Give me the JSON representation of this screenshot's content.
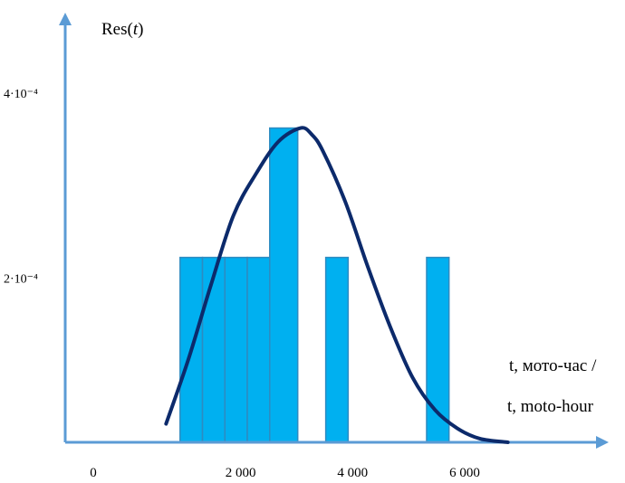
{
  "chart_data": {
    "type": "bar",
    "ylabel": "Res(t)",
    "xlabel_line1": "t, мото-час /",
    "xlabel_line2": "t, moto-hour",
    "x_ticks": [
      {
        "value": 0,
        "label": "0"
      },
      {
        "value": 2000,
        "label": "2 000"
      },
      {
        "value": 4000,
        "label": "4 000"
      },
      {
        "value": 6000,
        "label": "6 000"
      }
    ],
    "y_ticks": [
      {
        "value": 0.0002,
        "label": "2·10⁻⁴"
      },
      {
        "value": 0.0004,
        "label": "4·10⁻⁴"
      }
    ],
    "bars": [
      {
        "x0": 1050,
        "x1": 1450,
        "value": 0.0002
      },
      {
        "x0": 1450,
        "x1": 1850,
        "value": 0.0002
      },
      {
        "x0": 1850,
        "x1": 2250,
        "value": 0.0002
      },
      {
        "x0": 2250,
        "x1": 2650,
        "value": 0.0002
      },
      {
        "x0": 2650,
        "x1": 3150,
        "value": 0.00034
      },
      {
        "x0": 3650,
        "x1": 4050,
        "value": 0.0002
      },
      {
        "x0": 5450,
        "x1": 5850,
        "value": 0.0002
      }
    ],
    "curve": {
      "x": [
        800,
        1200,
        1600,
        2000,
        2400,
        2800,
        3200,
        3400,
        3600,
        4000,
        4400,
        4800,
        5200,
        5600,
        6000,
        6400,
        6900
      ],
      "y": [
        2e-05,
        9e-05,
        0.00017,
        0.000245,
        0.00029,
        0.000325,
        0.00034,
        0.000333,
        0.000315,
        0.00026,
        0.00019,
        0.000125,
        7e-05,
        3.5e-05,
        1.5e-05,
        4e-06,
        0.0
      ]
    },
    "xlim": [
      -1000,
      8700
    ],
    "ylim": [
      0,
      0.00041
    ],
    "colors": {
      "bar_fill": "#00b0f0",
      "bar_stroke": "#2e8bc0",
      "curve": "#0c2a6b",
      "axis": "#5b9bd5"
    }
  }
}
